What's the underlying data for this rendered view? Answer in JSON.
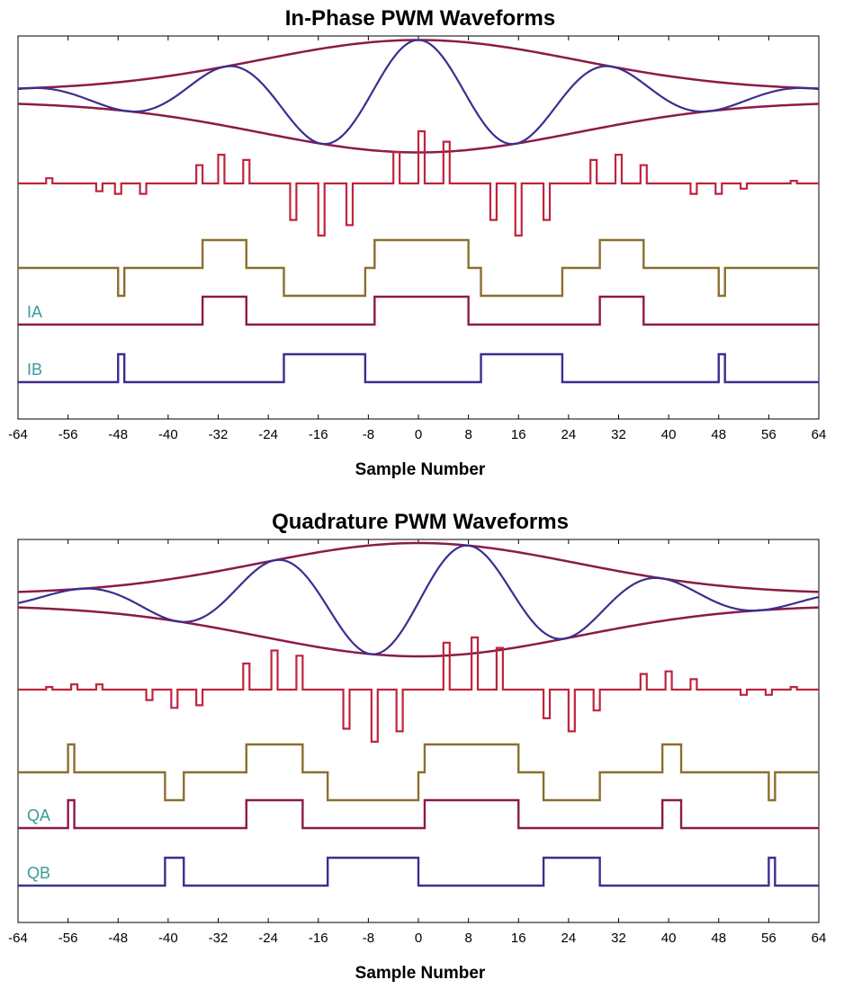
{
  "colors": {
    "envelope": "#8b1a4a",
    "carrier": "#3a2f8f",
    "diff": "#c0233c",
    "slow": "#8b6f2e",
    "chanA": "#8b1a4a",
    "chanB": "#3a2f8f",
    "label": "#3a9a9a"
  },
  "chart_data": [
    {
      "type": "line",
      "title": "In-Phase PWM Waveforms",
      "xlabel": "Sample Number",
      "xlim": [
        -64,
        64
      ],
      "xticks": [
        -64,
        -56,
        -48,
        -40,
        -32,
        -24,
        -16,
        -8,
        0,
        8,
        16,
        24,
        32,
        40,
        48,
        56,
        64
      ],
      "grid": false,
      "waveform_labels": [
        "IA",
        "IB"
      ],
      "carrier_peaks": [
        0,
        -15.5,
        15.5,
        -31,
        31
      ],
      "series": [
        {
          "name": "IA",
          "role": "channel A",
          "level": "low",
          "high_intervals": [
            [
              -34.5,
              -27.5
            ],
            [
              -7,
              8
            ],
            [
              29,
              36
            ]
          ]
        },
        {
          "name": "IB",
          "role": "channel B",
          "level": "low",
          "high_intervals": [
            [
              -48,
              -47
            ],
            [
              -21.5,
              -8.5
            ],
            [
              10,
              23
            ],
            [
              48,
              49
            ]
          ]
        },
        {
          "role": "A minus B",
          "level": "mid",
          "high_intervals": [
            [
              -34.5,
              -27.5
            ],
            [
              -7,
              8
            ],
            [
              29,
              36
            ]
          ],
          "low_intervals": [
            [
              -48,
              -47
            ],
            [
              -21.5,
              -8.5
            ],
            [
              10,
              23
            ],
            [
              48,
              49
            ]
          ]
        },
        {
          "role": "difference pulses",
          "level": "zero",
          "pulses": [
            [
              -59,
              0.1
            ],
            [
              -51,
              -0.15
            ],
            [
              -48,
              -0.2
            ],
            [
              -44,
              -0.2
            ],
            [
              -35,
              0.35
            ],
            [
              -31.5,
              0.55
            ],
            [
              -27.5,
              0.45
            ],
            [
              -20,
              -0.7
            ],
            [
              -15.5,
              -1.0
            ],
            [
              -11,
              -0.8
            ],
            [
              -3.5,
              0.6
            ],
            [
              0.5,
              1.0
            ],
            [
              4.5,
              0.8
            ],
            [
              12,
              -0.7
            ],
            [
              16,
              -1.0
            ],
            [
              20.5,
              -0.7
            ],
            [
              28,
              0.45
            ],
            [
              32,
              0.55
            ],
            [
              36,
              0.35
            ],
            [
              44,
              -0.2
            ],
            [
              48,
              -0.2
            ],
            [
              52,
              -0.1
            ],
            [
              60,
              0.05
            ]
          ]
        }
      ]
    },
    {
      "type": "line",
      "title": "Quadrature PWM Waveforms",
      "xlabel": "Sample Number",
      "xlim": [
        -64,
        64
      ],
      "xticks": [
        -64,
        -56,
        -48,
        -40,
        -32,
        -24,
        -16,
        -8,
        0,
        8,
        16,
        24,
        32,
        40,
        48,
        56,
        64
      ],
      "grid": false,
      "waveform_labels": [
        "QA",
        "QB"
      ],
      "carrier_peaks": [
        8,
        -7.5,
        23.5,
        -23,
        39,
        -38.5
      ],
      "series": [
        {
          "name": "QA",
          "role": "channel A",
          "level": "low",
          "high_intervals": [
            [
              -56,
              -55
            ],
            [
              -27.5,
              -18.5
            ],
            [
              1,
              16
            ],
            [
              39,
              42
            ]
          ]
        },
        {
          "name": "QB",
          "role": "channel B",
          "level": "low",
          "high_intervals": [
            [
              -40.5,
              -37.5
            ],
            [
              -14.5,
              0
            ],
            [
              20,
              29
            ],
            [
              56,
              57
            ]
          ]
        },
        {
          "role": "A minus B",
          "level": "mid",
          "high_intervals": [
            [
              -56,
              -55
            ],
            [
              -27.5,
              -18.5
            ],
            [
              1,
              16
            ],
            [
              39,
              42
            ]
          ],
          "low_intervals": [
            [
              -40.5,
              -37.5
            ],
            [
              -14.5,
              0
            ],
            [
              20,
              29
            ],
            [
              56,
              57
            ]
          ]
        },
        {
          "role": "difference pulses",
          "level": "zero",
          "pulses": [
            [
              -59,
              0.05
            ],
            [
              -55,
              0.1
            ],
            [
              -51,
              0.1
            ],
            [
              -43,
              -0.2
            ],
            [
              -39,
              -0.35
            ],
            [
              -35,
              -0.3
            ],
            [
              -27.5,
              0.5
            ],
            [
              -23,
              0.75
            ],
            [
              -19,
              0.65
            ],
            [
              -11.5,
              -0.75
            ],
            [
              -7,
              -1.0
            ],
            [
              -3,
              -0.8
            ],
            [
              4.5,
              0.9
            ],
            [
              9,
              1.0
            ],
            [
              13,
              0.8
            ],
            [
              20.5,
              -0.55
            ],
            [
              24.5,
              -0.8
            ],
            [
              28.5,
              -0.4
            ],
            [
              36,
              0.3
            ],
            [
              40,
              0.35
            ],
            [
              44,
              0.2
            ],
            [
              52,
              -0.1
            ],
            [
              56,
              -0.1
            ],
            [
              60,
              0.05
            ]
          ]
        }
      ]
    }
  ]
}
